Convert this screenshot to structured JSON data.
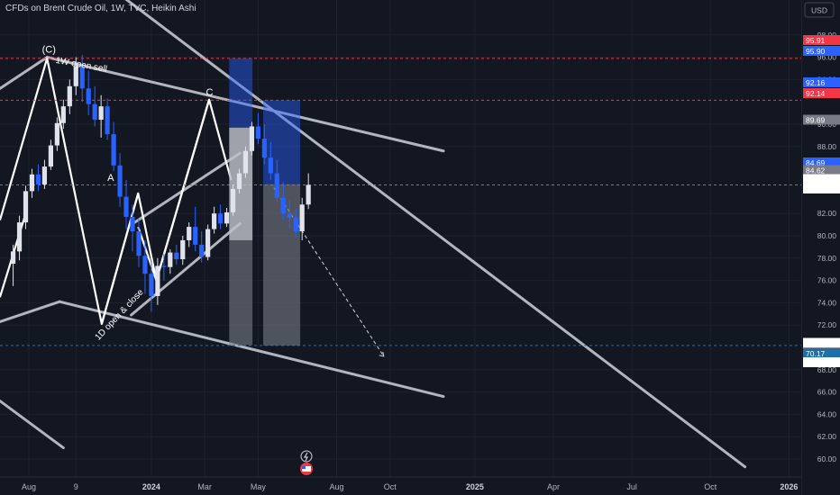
{
  "header": {
    "title": "CFDs on Brent Crude Oil, 1W, TVC, Heikin Ashi",
    "currency": "USD"
  },
  "chart_data": {
    "type": "candlestick",
    "style": "Heikin Ashi",
    "interval": "1W",
    "symbol": "CFDs on Brent Crude Oil",
    "source": "TVC",
    "y_axis": {
      "ticks": [
        98,
        96,
        94,
        90,
        88,
        82,
        80,
        78,
        76,
        74,
        72,
        68,
        66,
        64,
        62,
        60
      ],
      "range": [
        58.8,
        99.6
      ]
    },
    "x_axis": {
      "labels": [
        {
          "text": "Aug",
          "year": false,
          "week": 0
        },
        {
          "text": "9",
          "year": false,
          "week": 7.5
        },
        {
          "text": "2024",
          "year": true,
          "week": 19.5
        },
        {
          "text": "Mar",
          "year": false,
          "week": 28
        },
        {
          "text": "May",
          "year": false,
          "week": 36.5
        },
        {
          "text": "Aug",
          "year": false,
          "week": 49
        },
        {
          "text": "Oct",
          "year": false,
          "week": 57.5
        },
        {
          "text": "2025",
          "year": true,
          "week": 71
        },
        {
          "text": "Apr",
          "year": false,
          "week": 83.5
        },
        {
          "text": "Jul",
          "year": false,
          "week": 96
        },
        {
          "text": "Oct",
          "year": false,
          "week": 108.5
        },
        {
          "text": "2026",
          "year": true,
          "week": 121
        }
      ]
    },
    "candles_weeks_start": -2.5,
    "candles": [
      [
        77.5,
        79.2,
        75.5,
        78.6
      ],
      [
        78.6,
        81.8,
        77.8,
        81.2
      ],
      [
        81.2,
        84.5,
        80.6,
        84.0
      ],
      [
        84.0,
        86.0,
        83.4,
        85.5
      ],
      [
        85.5,
        86.4,
        84.0,
        84.6
      ],
      [
        84.6,
        86.8,
        84.2,
        86.2
      ],
      [
        86.2,
        88.6,
        85.9,
        88.1
      ],
      [
        88.1,
        90.6,
        87.6,
        90.1
      ],
      [
        90.1,
        92.2,
        89.6,
        91.6
      ],
      [
        91.6,
        94.0,
        90.9,
        93.4
      ],
      [
        93.4,
        96.0,
        92.6,
        95.2
      ],
      [
        95.2,
        96.2,
        92.0,
        93.2
      ],
      [
        93.2,
        94.8,
        90.8,
        91.8
      ],
      [
        91.8,
        93.4,
        89.8,
        90.4
      ],
      [
        90.4,
        92.6,
        88.8,
        91.6
      ],
      [
        91.6,
        92.3,
        88.6,
        89.1
      ],
      [
        89.1,
        90.2,
        85.8,
        86.3
      ],
      [
        86.3,
        87.4,
        82.6,
        83.5
      ],
      [
        83.5,
        85.0,
        80.6,
        81.7
      ],
      [
        81.7,
        82.8,
        78.6,
        80.4
      ],
      [
        80.4,
        81.5,
        77.2,
        78.2
      ],
      [
        78.2,
        79.6,
        74.8,
        76.6
      ],
      [
        76.6,
        77.8,
        73.2,
        74.6
      ],
      [
        74.6,
        78.0,
        73.8,
        77.3
      ],
      [
        77.3,
        78.4,
        76.0,
        77.2
      ],
      [
        77.2,
        78.8,
        76.6,
        78.5
      ],
      [
        78.5,
        79.2,
        77.4,
        77.9
      ],
      [
        77.9,
        80.0,
        77.4,
        79.6
      ],
      [
        79.6,
        81.2,
        79.0,
        80.8
      ],
      [
        80.8,
        82.6,
        78.6,
        79.2
      ],
      [
        79.2,
        80.4,
        77.6,
        78.1
      ],
      [
        78.1,
        81.0,
        77.8,
        80.6
      ],
      [
        80.6,
        82.6,
        80.2,
        82.0
      ],
      [
        82.0,
        82.8,
        80.6,
        81.1
      ],
      [
        81.1,
        82.5,
        80.8,
        82.1
      ],
      [
        82.1,
        84.6,
        81.8,
        84.2
      ],
      [
        84.2,
        86.0,
        83.8,
        85.6
      ],
      [
        85.6,
        88.0,
        85.2,
        87.6
      ],
      [
        87.6,
        90.2,
        87.2,
        89.8
      ],
      [
        89.8,
        91.0,
        88.2,
        88.7
      ],
      [
        88.7,
        90.0,
        86.4,
        87.0
      ],
      [
        87.0,
        88.4,
        85.0,
        85.6
      ],
      [
        85.6,
        86.8,
        83.0,
        83.4
      ],
      [
        83.4,
        84.8,
        81.4,
        82.0
      ],
      [
        82.0,
        83.2,
        80.6,
        81.6
      ],
      [
        81.6,
        82.4,
        79.8,
        80.4
      ],
      [
        80.4,
        83.4,
        79.6,
        82.8
      ],
      [
        82.8,
        85.6,
        82.4,
        84.56
      ]
    ],
    "price_levels": [
      {
        "label": "95.91",
        "price": 95.91,
        "color": "#f23645"
      },
      {
        "label": "95.90",
        "price": 95.9,
        "color": "#2962ff"
      },
      {
        "label": "92.16",
        "price": 92.16,
        "color": "#2962ff"
      },
      {
        "label": "92.14",
        "price": 92.14,
        "color": "#f23645"
      },
      {
        "label": "89.69",
        "price": 89.69,
        "color": "#787b86"
      },
      {
        "label": "84.69",
        "price": 84.69,
        "color": "#2962ff"
      },
      {
        "label": "84.62",
        "price": 84.62,
        "color": "#787b86"
      },
      {
        "label": "84.56",
        "price": 84.56,
        "color": "#ffffff",
        "text_color": "#131722"
      },
      {
        "label": "70.21",
        "price": 70.21,
        "color": "#ffffff",
        "text_color": "#131722"
      },
      {
        "label": "70.17",
        "price": 70.17,
        "color": "#1e6fa8"
      },
      {
        "label": "70.10",
        "price": 70.1,
        "color": "#ffffff",
        "text_color": "#131722"
      }
    ],
    "countdown": "2d 16h",
    "positions": [
      {
        "name": "short-position-1",
        "x_from_week": 31.9,
        "x_to_week": 35.6,
        "entry": 89.69,
        "stop": 95.9,
        "target": 70.21,
        "current": 79.6
      },
      {
        "name": "short-position-2",
        "x_from_week": 37.3,
        "x_to_week": 43.2,
        "entry": 84.62,
        "stop": 92.14,
        "target": 70.17,
        "current": 70.17
      }
    ],
    "annotations": [
      {
        "name": "label-c-wave",
        "text": "(C)",
        "week": 2.1,
        "price": 96.4
      },
      {
        "name": "label-1w-open-sell",
        "text": "1W open sell",
        "week": 4.2,
        "price": 95.5,
        "rotate": 10
      },
      {
        "name": "label-a",
        "text": "A",
        "week": 12.5,
        "price": 84.9
      },
      {
        "name": "label-c",
        "text": "C",
        "week": 28.2,
        "price": 92.6
      },
      {
        "name": "label-1d-open-close",
        "text": "1D open & close",
        "week": 11.1,
        "price": 70.6,
        "rotate": -47
      }
    ],
    "icons": [
      "lightning-icon",
      "us-flag-events-icon"
    ]
  }
}
